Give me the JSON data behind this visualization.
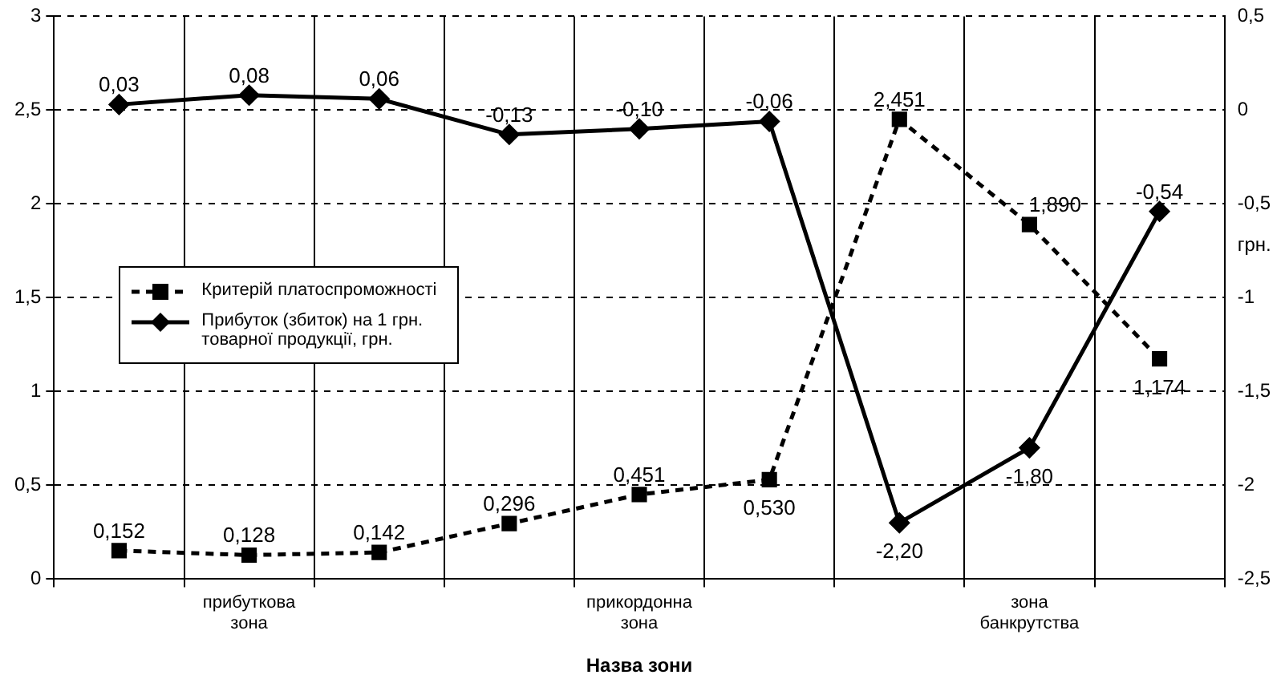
{
  "chart_data": {
    "type": "line",
    "xlabel": "Назва зони",
    "y2label": "грн.",
    "categories": [
      null,
      "прибуткова\nзона",
      null,
      null,
      "прикордонна\nзона",
      null,
      null,
      "зона\nбанкрутства",
      null
    ],
    "series": [
      {
        "name": "Критерій платоспроможності",
        "color": "#000000",
        "line_style": "dashed",
        "marker": "square",
        "values": [
          0.152,
          0.128,
          0.142,
          0.296,
          0.451,
          0.53,
          2.451,
          1.89,
          1.174
        ],
        "value_labels": [
          "0,152",
          "0,128",
          "0,142",
          "0,296",
          "0,451",
          "0,530",
          "2,451",
          "1,890",
          "1,174"
        ]
      },
      {
        "name": "Прибуток (збиток) на 1 грн. товарної продукції, грн.",
        "color": "#000000",
        "line_style": "solid",
        "marker": "diamond",
        "axis": "y2",
        "values": [
          0.03,
          0.08,
          0.06,
          -0.13,
          -0.1,
          -0.06,
          -2.2,
          -1.8,
          -0.54
        ],
        "value_labels": [
          "0,03",
          "0,08",
          "0,06",
          "-0,13",
          "-0,10",
          "-0,06",
          "-2,20",
          "-1,80",
          "-0,54"
        ]
      }
    ],
    "ylim": [
      0,
      3
    ],
    "yticks": [
      0,
      {
        "value": 0.5,
        "label": "0,5"
      },
      1,
      {
        "value": 1.5,
        "label": "1,5"
      },
      2,
      {
        "value": 2.5,
        "label": "2,5"
      },
      3
    ],
    "y2lim": [
      -2.5,
      0.5
    ],
    "y2ticks": [
      {
        "value": -2.5,
        "label": "-2,5"
      },
      -2,
      {
        "value": -1.5,
        "label": "-1,5"
      },
      -1,
      {
        "value": -0.5,
        "label": "-0,5"
      },
      0,
      {
        "value": 0.5,
        "label": "0,5"
      }
    ],
    "grid": true,
    "legend": "left"
  }
}
